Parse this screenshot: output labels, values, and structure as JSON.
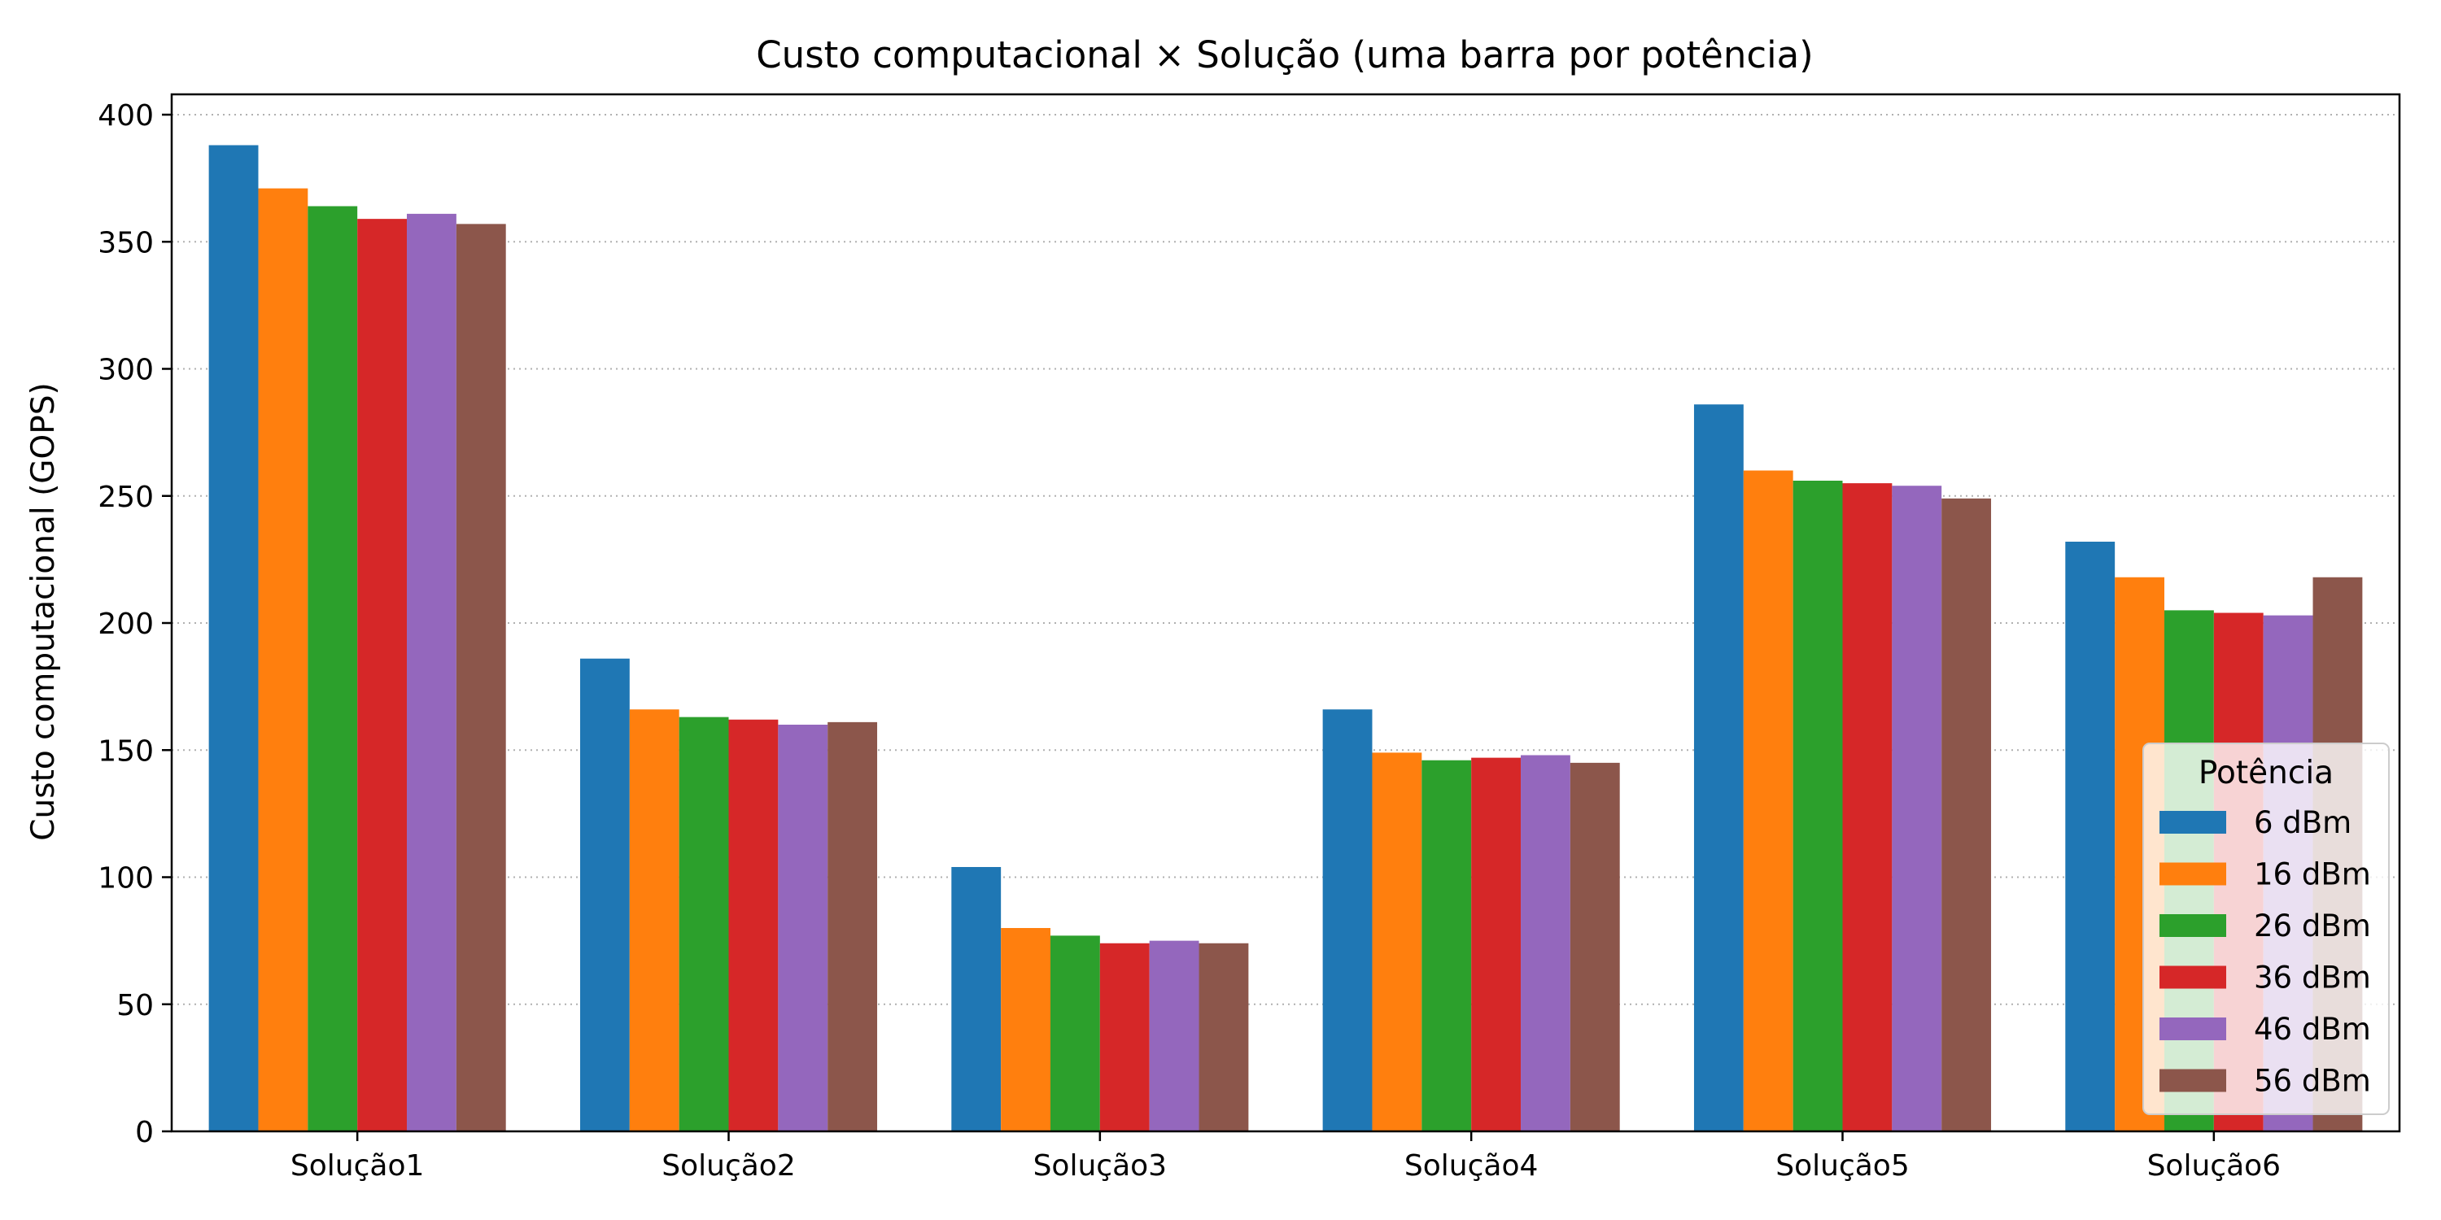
{
  "chart_data": {
    "type": "bar",
    "title": "Custo computacional × Solução (uma barra por potência)",
    "xlabel": "",
    "ylabel": "Custo computacional (GOPS)",
    "categories": [
      "Solução1",
      "Solução2",
      "Solução3",
      "Solução4",
      "Solução5",
      "Solução6"
    ],
    "ylim": [
      0,
      408
    ],
    "yticks": [
      0,
      50,
      100,
      150,
      200,
      250,
      300,
      350,
      400
    ],
    "grid": true,
    "legend": {
      "title": "Potência",
      "placement": "lower-right"
    },
    "series": [
      {
        "name": "6 dBm",
        "color": "#1f77b4",
        "values": [
          388,
          186,
          104,
          166,
          286,
          232
        ]
      },
      {
        "name": "16 dBm",
        "color": "#ff7f0e",
        "values": [
          371,
          166,
          80,
          149,
          260,
          218
        ]
      },
      {
        "name": "26 dBm",
        "color": "#2ca02c",
        "values": [
          364,
          163,
          77,
          146,
          256,
          205
        ]
      },
      {
        "name": "36 dBm",
        "color": "#d62728",
        "values": [
          359,
          162,
          74,
          147,
          255,
          204
        ]
      },
      {
        "name": "46 dBm",
        "color": "#9467bd",
        "values": [
          361,
          160,
          75,
          148,
          254,
          203
        ]
      },
      {
        "name": "56 dBm",
        "color": "#8c564b",
        "values": [
          357,
          161,
          74,
          145,
          249,
          218
        ]
      }
    ]
  }
}
